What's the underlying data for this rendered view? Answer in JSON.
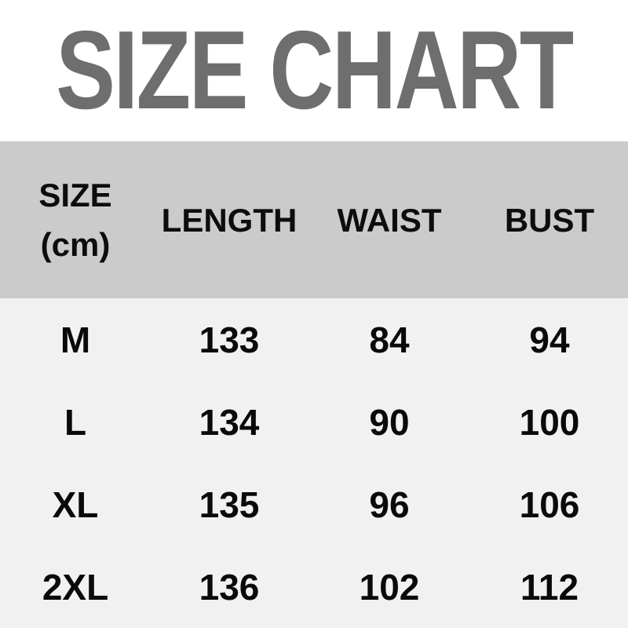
{
  "title": "SIZE CHART",
  "chart_data": {
    "type": "table",
    "title": "SIZE CHART",
    "units": "cm",
    "columns": [
      "SIZE (cm)",
      "LENGTH",
      "WAIST",
      "BUST"
    ],
    "rows": [
      [
        "M",
        "133",
        "84",
        "94"
      ],
      [
        "L",
        "134",
        "90",
        "100"
      ],
      [
        "XL",
        "135",
        "96",
        "106"
      ],
      [
        "2XL",
        "136",
        "102",
        "112"
      ]
    ]
  },
  "colors": {
    "title_text": "#6e6e6e",
    "header_background": "#cbcbcb",
    "header_text": "#0d0d0f",
    "body_background": "#f1f1f1",
    "body_text": "#0a0a0a",
    "page_background": "#ffffff"
  }
}
